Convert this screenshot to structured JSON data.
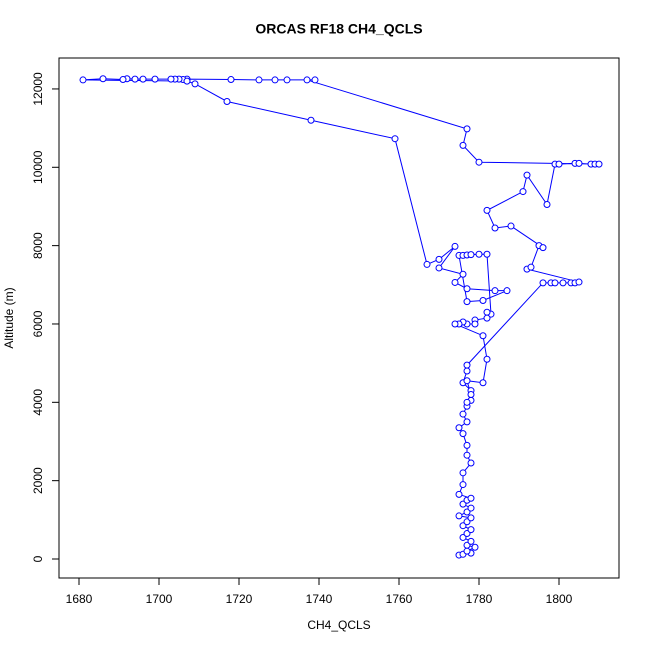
{
  "chart_data": {
    "type": "line",
    "title": "ORCAS RF18 CH4_QCLS",
    "x_label": "CH4_QCLS",
    "y_label": "Altitude (m)",
    "color": "#0000ff",
    "markers": true,
    "xlim": [
      1675,
      1815
    ],
    "xticks": [
      1680,
      1700,
      1720,
      1740,
      1760,
      1780,
      1800
    ],
    "ylim": [
      -485,
      12790
    ],
    "yticks": [
      0,
      2000,
      4000,
      6000,
      8000,
      10000,
      12000
    ],
    "x": [
      1775,
      1776,
      1778,
      1777,
      1779,
      1777,
      1778,
      1776,
      1777,
      1778,
      1776,
      1777,
      1778,
      1775,
      1777,
      1778,
      1776,
      1777,
      1778,
      1775,
      1776,
      1776,
      1778,
      1777,
      1777,
      1776,
      1775,
      1777,
      1776,
      1777,
      1778,
      1778,
      1776,
      1777,
      1777,
      1796,
      1798,
      1799,
      1801,
      1803,
      1804,
      1805,
      1792,
      1793,
      1795,
      1796,
      1788,
      1784,
      1782,
      1791,
      1792,
      1797,
      1799,
      1800,
      1804,
      1805,
      1808,
      1809,
      1810,
      1780,
      1776,
      1777,
      1737,
      1739,
      1732,
      1729,
      1725,
      1718,
      1707,
      1706,
      1705,
      1704,
      1703,
      1699,
      1696,
      1694,
      1692,
      1691,
      1686,
      1681,
      1707,
      1709,
      1717,
      1738,
      1759,
      1767,
      1770,
      1774,
      1770,
      1776,
      1774,
      1777,
      1784,
      1787,
      1781,
      1777,
      1775,
      1776,
      1777,
      1778,
      1780,
      1782,
      1783,
      1782,
      1782,
      1779,
      1779,
      1777,
      1776,
      1775,
      1774,
      1781,
      1782,
      1781,
      1777,
      1778,
      1777
    ],
    "values": [
      100,
      120,
      150,
      200,
      300,
      350,
      450,
      550,
      650,
      750,
      850,
      950,
      1050,
      1100,
      1200,
      1300,
      1400,
      1500,
      1550,
      1650,
      1900,
      2200,
      2450,
      2650,
      2900,
      3200,
      3350,
      3500,
      3700,
      3900,
      4050,
      4300,
      4500,
      4800,
      4950,
      7050,
      7050,
      7050,
      7050,
      7050,
      7050,
      7070,
      7400,
      7450,
      8000,
      7950,
      8500,
      8450,
      8900,
      9380,
      9800,
      9050,
      10080,
      10080,
      10100,
      10100,
      10080,
      10080,
      10080,
      10130,
      10560,
      10980,
      12230,
      12230,
      12230,
      12230,
      12230,
      12240,
      12250,
      12240,
      12250,
      12250,
      12250,
      12250,
      12250,
      12250,
      12260,
      12240,
      12260,
      12230,
      12200,
      12130,
      11680,
      11200,
      10730,
      7520,
      7650,
      7980,
      7430,
      7270,
      7060,
      6900,
      6850,
      6850,
      6600,
      6570,
      7750,
      7750,
      7760,
      7770,
      7780,
      7780,
      6250,
      6300,
      6150,
      6100,
      6000,
      6000,
      6050,
      6000,
      6000,
      5700,
      5100,
      4500,
      4550,
      4200,
      4000
    ]
  }
}
